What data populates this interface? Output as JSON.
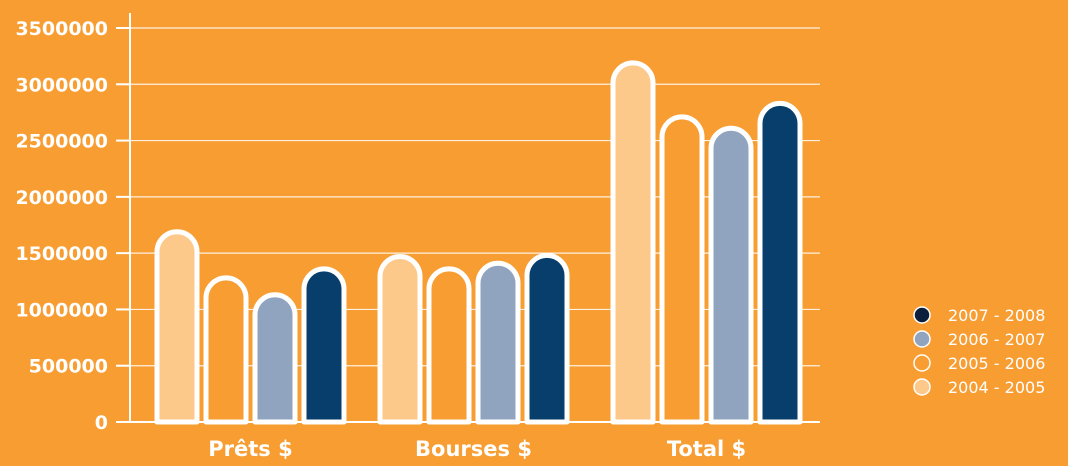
{
  "chart_data": {
    "type": "bar",
    "categories": [
      "Prêts $",
      "Bourses $",
      "Total $"
    ],
    "series": [
      {
        "name": "2004 - 2005",
        "values": [
          1690000,
          1470000,
          3190000
        ],
        "fill": "#FCC98A"
      },
      {
        "name": "2005 - 2006",
        "values": [
          1280000,
          1360000,
          2710000
        ],
        "fill": "#F79D32"
      },
      {
        "name": "2006 - 2007",
        "values": [
          1130000,
          1410000,
          2610000
        ],
        "fill": "#90A4C0"
      },
      {
        "name": "2007 - 2008",
        "values": [
          1360000,
          1480000,
          2830000
        ],
        "fill": "#073E6B"
      }
    ],
    "y_ticks": [
      "0",
      "500000",
      "1000000",
      "1500000",
      "2000000",
      "2500000",
      "3000000",
      "3500000"
    ],
    "ylim": [
      0,
      3500000
    ],
    "grid": true,
    "legend": {
      "position": "right",
      "order": [
        "2007 - 2008",
        "2006 - 2007",
        "2005 - 2006",
        "2004 - 2005"
      ],
      "markers": {
        "2007 - 2008": "#0B1E3C",
        "2006 - 2007": "#90A4C0",
        "2005 - 2006": "#F79D32",
        "2004 - 2005": "#FCC98A"
      }
    },
    "colors": {
      "background": "#F79D32",
      "axis": "#ffffff",
      "bar_outline": "#ffffff"
    }
  }
}
